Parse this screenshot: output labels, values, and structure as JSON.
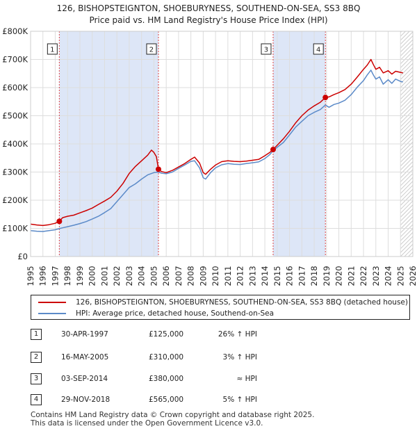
{
  "title": {
    "line1": "126, BISHOPSTEIGNTON, SHOEBURYNESS, SOUTHEND-ON-SEA, SS3 8BQ",
    "line2": "Price paid vs. HM Land Registry's House Price Index (HPI)"
  },
  "colors": {
    "property_line": "#cc0000",
    "hpi_line": "#5b8ac8",
    "shade": "#dde6f7",
    "grid": "#dddddd",
    "marker": "#cc0000"
  },
  "chart_data": {
    "type": "line",
    "title": "Price paid vs. HM Land Registry's House Price Index (HPI)",
    "xlim": [
      1995,
      2026
    ],
    "ylim": [
      0,
      800000
    ],
    "x_ticks": [
      "1995",
      "1996",
      "1997",
      "1998",
      "1999",
      "2000",
      "2001",
      "2002",
      "2003",
      "2004",
      "2005",
      "2006",
      "2007",
      "2008",
      "2009",
      "2010",
      "2011",
      "2012",
      "2013",
      "2014",
      "2015",
      "2016",
      "2017",
      "2018",
      "2019",
      "2020",
      "2021",
      "2022",
      "2023",
      "2024",
      "2025",
      "2026"
    ],
    "y_ticks": [
      {
        "value": 0,
        "label": "£0"
      },
      {
        "value": 100000,
        "label": "£100K"
      },
      {
        "value": 200000,
        "label": "£200K"
      },
      {
        "value": 300000,
        "label": "£300K"
      },
      {
        "value": 400000,
        "label": "£400K"
      },
      {
        "value": 500000,
        "label": "£500K"
      },
      {
        "value": 600000,
        "label": "£600K"
      },
      {
        "value": 700000,
        "label": "£700K"
      },
      {
        "value": 800000,
        "label": "£800K"
      }
    ],
    "shaded_ranges": [
      [
        1997.33,
        2005.37
      ],
      [
        2014.67,
        2018.91
      ]
    ],
    "future_hatch_from": 2025.0,
    "series": [
      {
        "name": "126, BISHOPSTEIGNTON, SHOEBURYNESS, SOUTHEND-ON-SEA, SS3 8BQ (detached house)",
        "color": "#cc0000",
        "points": [
          [
            1995.0,
            115000
          ],
          [
            1995.5,
            112000
          ],
          [
            1996.0,
            110000
          ],
          [
            1996.5,
            113000
          ],
          [
            1997.0,
            118000
          ],
          [
            1997.33,
            125000
          ],
          [
            1997.6,
            138000
          ],
          [
            1998.0,
            143000
          ],
          [
            1998.5,
            147000
          ],
          [
            1999.0,
            155000
          ],
          [
            1999.5,
            163000
          ],
          [
            2000.0,
            172000
          ],
          [
            2000.5,
            185000
          ],
          [
            2001.0,
            197000
          ],
          [
            2001.5,
            210000
          ],
          [
            2002.0,
            232000
          ],
          [
            2002.5,
            260000
          ],
          [
            2003.0,
            295000
          ],
          [
            2003.5,
            320000
          ],
          [
            2004.0,
            340000
          ],
          [
            2004.5,
            360000
          ],
          [
            2004.8,
            378000
          ],
          [
            2005.0,
            370000
          ],
          [
            2005.2,
            355000
          ],
          [
            2005.37,
            310000
          ],
          [
            2005.6,
            302000
          ],
          [
            2006.0,
            298000
          ],
          [
            2006.5,
            306000
          ],
          [
            2007.0,
            318000
          ],
          [
            2007.5,
            330000
          ],
          [
            2008.0,
            345000
          ],
          [
            2008.3,
            353000
          ],
          [
            2008.7,
            332000
          ],
          [
            2009.0,
            298000
          ],
          [
            2009.2,
            292000
          ],
          [
            2009.6,
            310000
          ],
          [
            2010.0,
            325000
          ],
          [
            2010.5,
            337000
          ],
          [
            2011.0,
            340000
          ],
          [
            2011.5,
            338000
          ],
          [
            2012.0,
            337000
          ],
          [
            2012.5,
            339000
          ],
          [
            2013.0,
            342000
          ],
          [
            2013.5,
            345000
          ],
          [
            2014.0,
            358000
          ],
          [
            2014.4,
            370000
          ],
          [
            2014.67,
            380000
          ],
          [
            2015.0,
            395000
          ],
          [
            2015.5,
            418000
          ],
          [
            2016.0,
            445000
          ],
          [
            2016.5,
            475000
          ],
          [
            2017.0,
            500000
          ],
          [
            2017.5,
            520000
          ],
          [
            2018.0,
            535000
          ],
          [
            2018.5,
            548000
          ],
          [
            2018.91,
            565000
          ],
          [
            2019.2,
            567000
          ],
          [
            2019.6,
            575000
          ],
          [
            2020.0,
            582000
          ],
          [
            2020.5,
            593000
          ],
          [
            2021.0,
            612000
          ],
          [
            2021.5,
            638000
          ],
          [
            2022.0,
            665000
          ],
          [
            2022.3,
            680000
          ],
          [
            2022.6,
            700000
          ],
          [
            2022.8,
            682000
          ],
          [
            2023.0,
            665000
          ],
          [
            2023.3,
            672000
          ],
          [
            2023.6,
            652000
          ],
          [
            2024.0,
            660000
          ],
          [
            2024.3,
            648000
          ],
          [
            2024.6,
            658000
          ],
          [
            2025.0,
            654000
          ],
          [
            2025.2,
            652000
          ]
        ]
      },
      {
        "name": "HPI: Average price, detached house, Southend-on-Sea",
        "color": "#5b8ac8",
        "points": [
          [
            1995.0,
            92000
          ],
          [
            1995.5,
            90000
          ],
          [
            1996.0,
            89000
          ],
          [
            1996.5,
            92000
          ],
          [
            1997.0,
            95000
          ],
          [
            1997.33,
            99000
          ],
          [
            1997.6,
            102000
          ],
          [
            1998.0,
            106000
          ],
          [
            1998.5,
            111000
          ],
          [
            1999.0,
            117000
          ],
          [
            1999.5,
            124000
          ],
          [
            2000.0,
            133000
          ],
          [
            2000.5,
            143000
          ],
          [
            2001.0,
            156000
          ],
          [
            2001.5,
            170000
          ],
          [
            2002.0,
            195000
          ],
          [
            2002.5,
            220000
          ],
          [
            2003.0,
            245000
          ],
          [
            2003.5,
            258000
          ],
          [
            2004.0,
            275000
          ],
          [
            2004.5,
            290000
          ],
          [
            2005.0,
            298000
          ],
          [
            2005.37,
            300000
          ],
          [
            2005.6,
            296000
          ],
          [
            2006.0,
            294000
          ],
          [
            2006.5,
            300000
          ],
          [
            2007.0,
            313000
          ],
          [
            2007.5,
            325000
          ],
          [
            2008.0,
            338000
          ],
          [
            2008.3,
            340000
          ],
          [
            2008.7,
            315000
          ],
          [
            2009.0,
            280000
          ],
          [
            2009.2,
            275000
          ],
          [
            2009.6,
            298000
          ],
          [
            2010.0,
            315000
          ],
          [
            2010.5,
            326000
          ],
          [
            2011.0,
            330000
          ],
          [
            2011.5,
            328000
          ],
          [
            2012.0,
            327000
          ],
          [
            2012.5,
            330000
          ],
          [
            2013.0,
            333000
          ],
          [
            2013.5,
            336000
          ],
          [
            2014.0,
            348000
          ],
          [
            2014.4,
            362000
          ],
          [
            2014.67,
            376000
          ],
          [
            2015.0,
            388000
          ],
          [
            2015.5,
            405000
          ],
          [
            2016.0,
            432000
          ],
          [
            2016.5,
            460000
          ],
          [
            2017.0,
            480000
          ],
          [
            2017.5,
            500000
          ],
          [
            2018.0,
            512000
          ],
          [
            2018.5,
            522000
          ],
          [
            2018.91,
            538000
          ],
          [
            2019.2,
            530000
          ],
          [
            2019.6,
            540000
          ],
          [
            2020.0,
            545000
          ],
          [
            2020.5,
            555000
          ],
          [
            2021.0,
            575000
          ],
          [
            2021.5,
            602000
          ],
          [
            2022.0,
            625000
          ],
          [
            2022.3,
            645000
          ],
          [
            2022.6,
            662000
          ],
          [
            2022.8,
            645000
          ],
          [
            2023.0,
            630000
          ],
          [
            2023.3,
            638000
          ],
          [
            2023.6,
            612000
          ],
          [
            2024.0,
            628000
          ],
          [
            2024.3,
            615000
          ],
          [
            2024.6,
            630000
          ],
          [
            2025.0,
            622000
          ],
          [
            2025.2,
            620000
          ]
        ]
      }
    ],
    "sale_markers": [
      {
        "label": "1",
        "x": 1997.33,
        "y": 125000
      },
      {
        "label": "2",
        "x": 2005.37,
        "y": 310000
      },
      {
        "label": "3",
        "x": 2014.67,
        "y": 380000
      },
      {
        "label": "4",
        "x": 2018.91,
        "y": 565000
      }
    ]
  },
  "legend": {
    "property": "126, BISHOPSTEIGNTON, SHOEBURYNESS, SOUTHEND-ON-SEA, SS3 8BQ (detached house)",
    "hpi": "HPI: Average price, detached house, Southend-on-Sea"
  },
  "sales": [
    {
      "num": "1",
      "date": "30-APR-1997",
      "price": "£125,000",
      "rel": "26% ↑ HPI"
    },
    {
      "num": "2",
      "date": "16-MAY-2005",
      "price": "£310,000",
      "rel": "3% ↑ HPI"
    },
    {
      "num": "3",
      "date": "03-SEP-2014",
      "price": "£380,000",
      "rel": "≈ HPI"
    },
    {
      "num": "4",
      "date": "29-NOV-2018",
      "price": "£565,000",
      "rel": "5% ↑ HPI"
    }
  ],
  "footer": {
    "line1": "Contains HM Land Registry data © Crown copyright and database right 2025.",
    "line2": "This data is licensed under the Open Government Licence v3.0."
  }
}
